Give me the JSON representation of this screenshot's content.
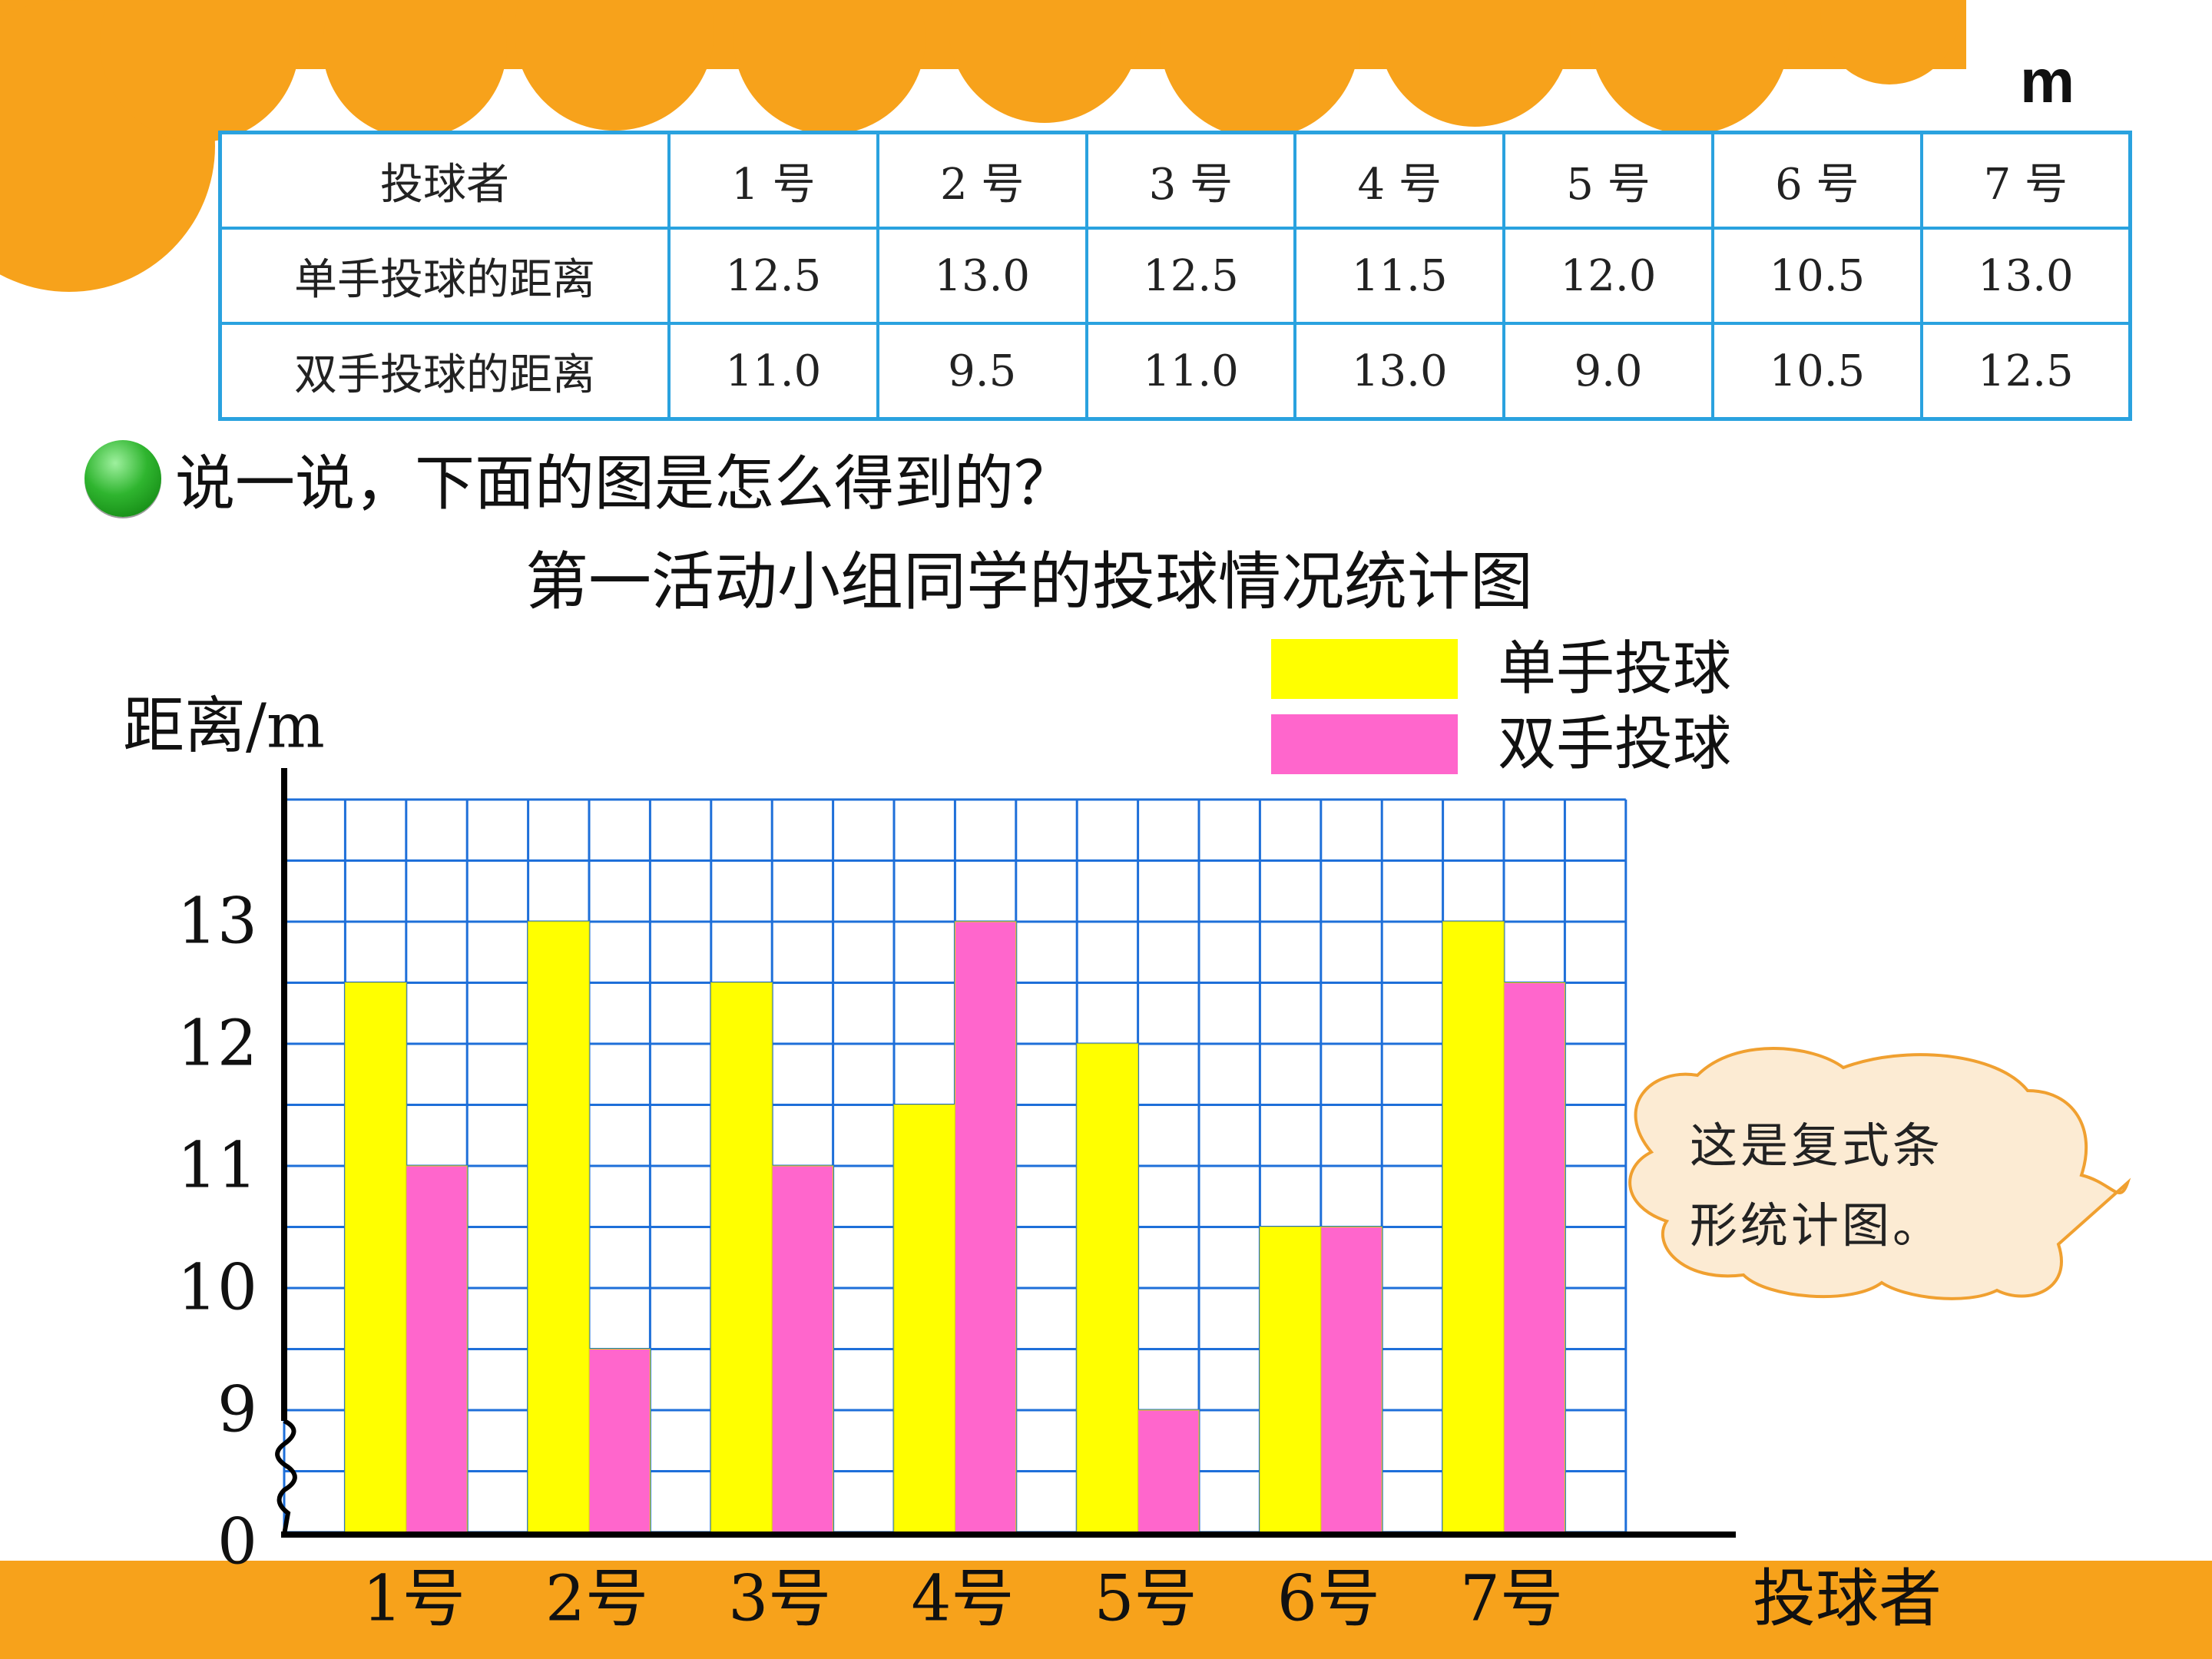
{
  "unit_label": "m",
  "table": {
    "header": [
      "投球者",
      "1 号",
      "2 号",
      "3 号",
      "4 号",
      "5 号",
      "6 号",
      "7 号"
    ],
    "rows": [
      {
        "label": "单手投球的距离",
        "values": [
          "12.5",
          "13.0",
          "12.5",
          "11.5",
          "12.0",
          "10.5",
          "13.0"
        ]
      },
      {
        "label": "双手投球的距离",
        "values": [
          "11.0",
          "9.5",
          "11.0",
          "13.0",
          "9.0",
          "10.5",
          "12.5"
        ]
      }
    ]
  },
  "question": "说一说，下面的图是怎么得到的？",
  "bubble": {
    "line1": "这是复式条",
    "line2": "形统计图。"
  },
  "chart_data": {
    "type": "bar",
    "title": "第一活动小组同学的投球情况统计图",
    "xlabel": "投球者",
    "ylabel": "距离/m",
    "categories": [
      "1号",
      "2号",
      "3号",
      "4号",
      "5号",
      "6号",
      "7号"
    ],
    "series": [
      {
        "name": "单手投球",
        "color": "#FFFF00",
        "values": [
          12.5,
          13.0,
          12.5,
          11.5,
          12.0,
          10.5,
          13.0
        ]
      },
      {
        "name": "双手投球",
        "color": "#FF66CC",
        "values": [
          11.0,
          9.5,
          11.0,
          13.0,
          9.0,
          10.5,
          12.5
        ]
      }
    ],
    "yticks": [
      {
        "value": 0,
        "label": "0"
      },
      {
        "value": 9,
        "label": "9"
      },
      {
        "value": 10,
        "label": "10"
      },
      {
        "value": 11,
        "label": "11"
      },
      {
        "value": 12,
        "label": "12"
      },
      {
        "value": 13,
        "label": "13"
      }
    ],
    "axis_break": true,
    "visible_range": [
      8,
      13.5
    ],
    "grid": true,
    "grid_color": "#1E6FD9",
    "legend_position": "top-right"
  }
}
